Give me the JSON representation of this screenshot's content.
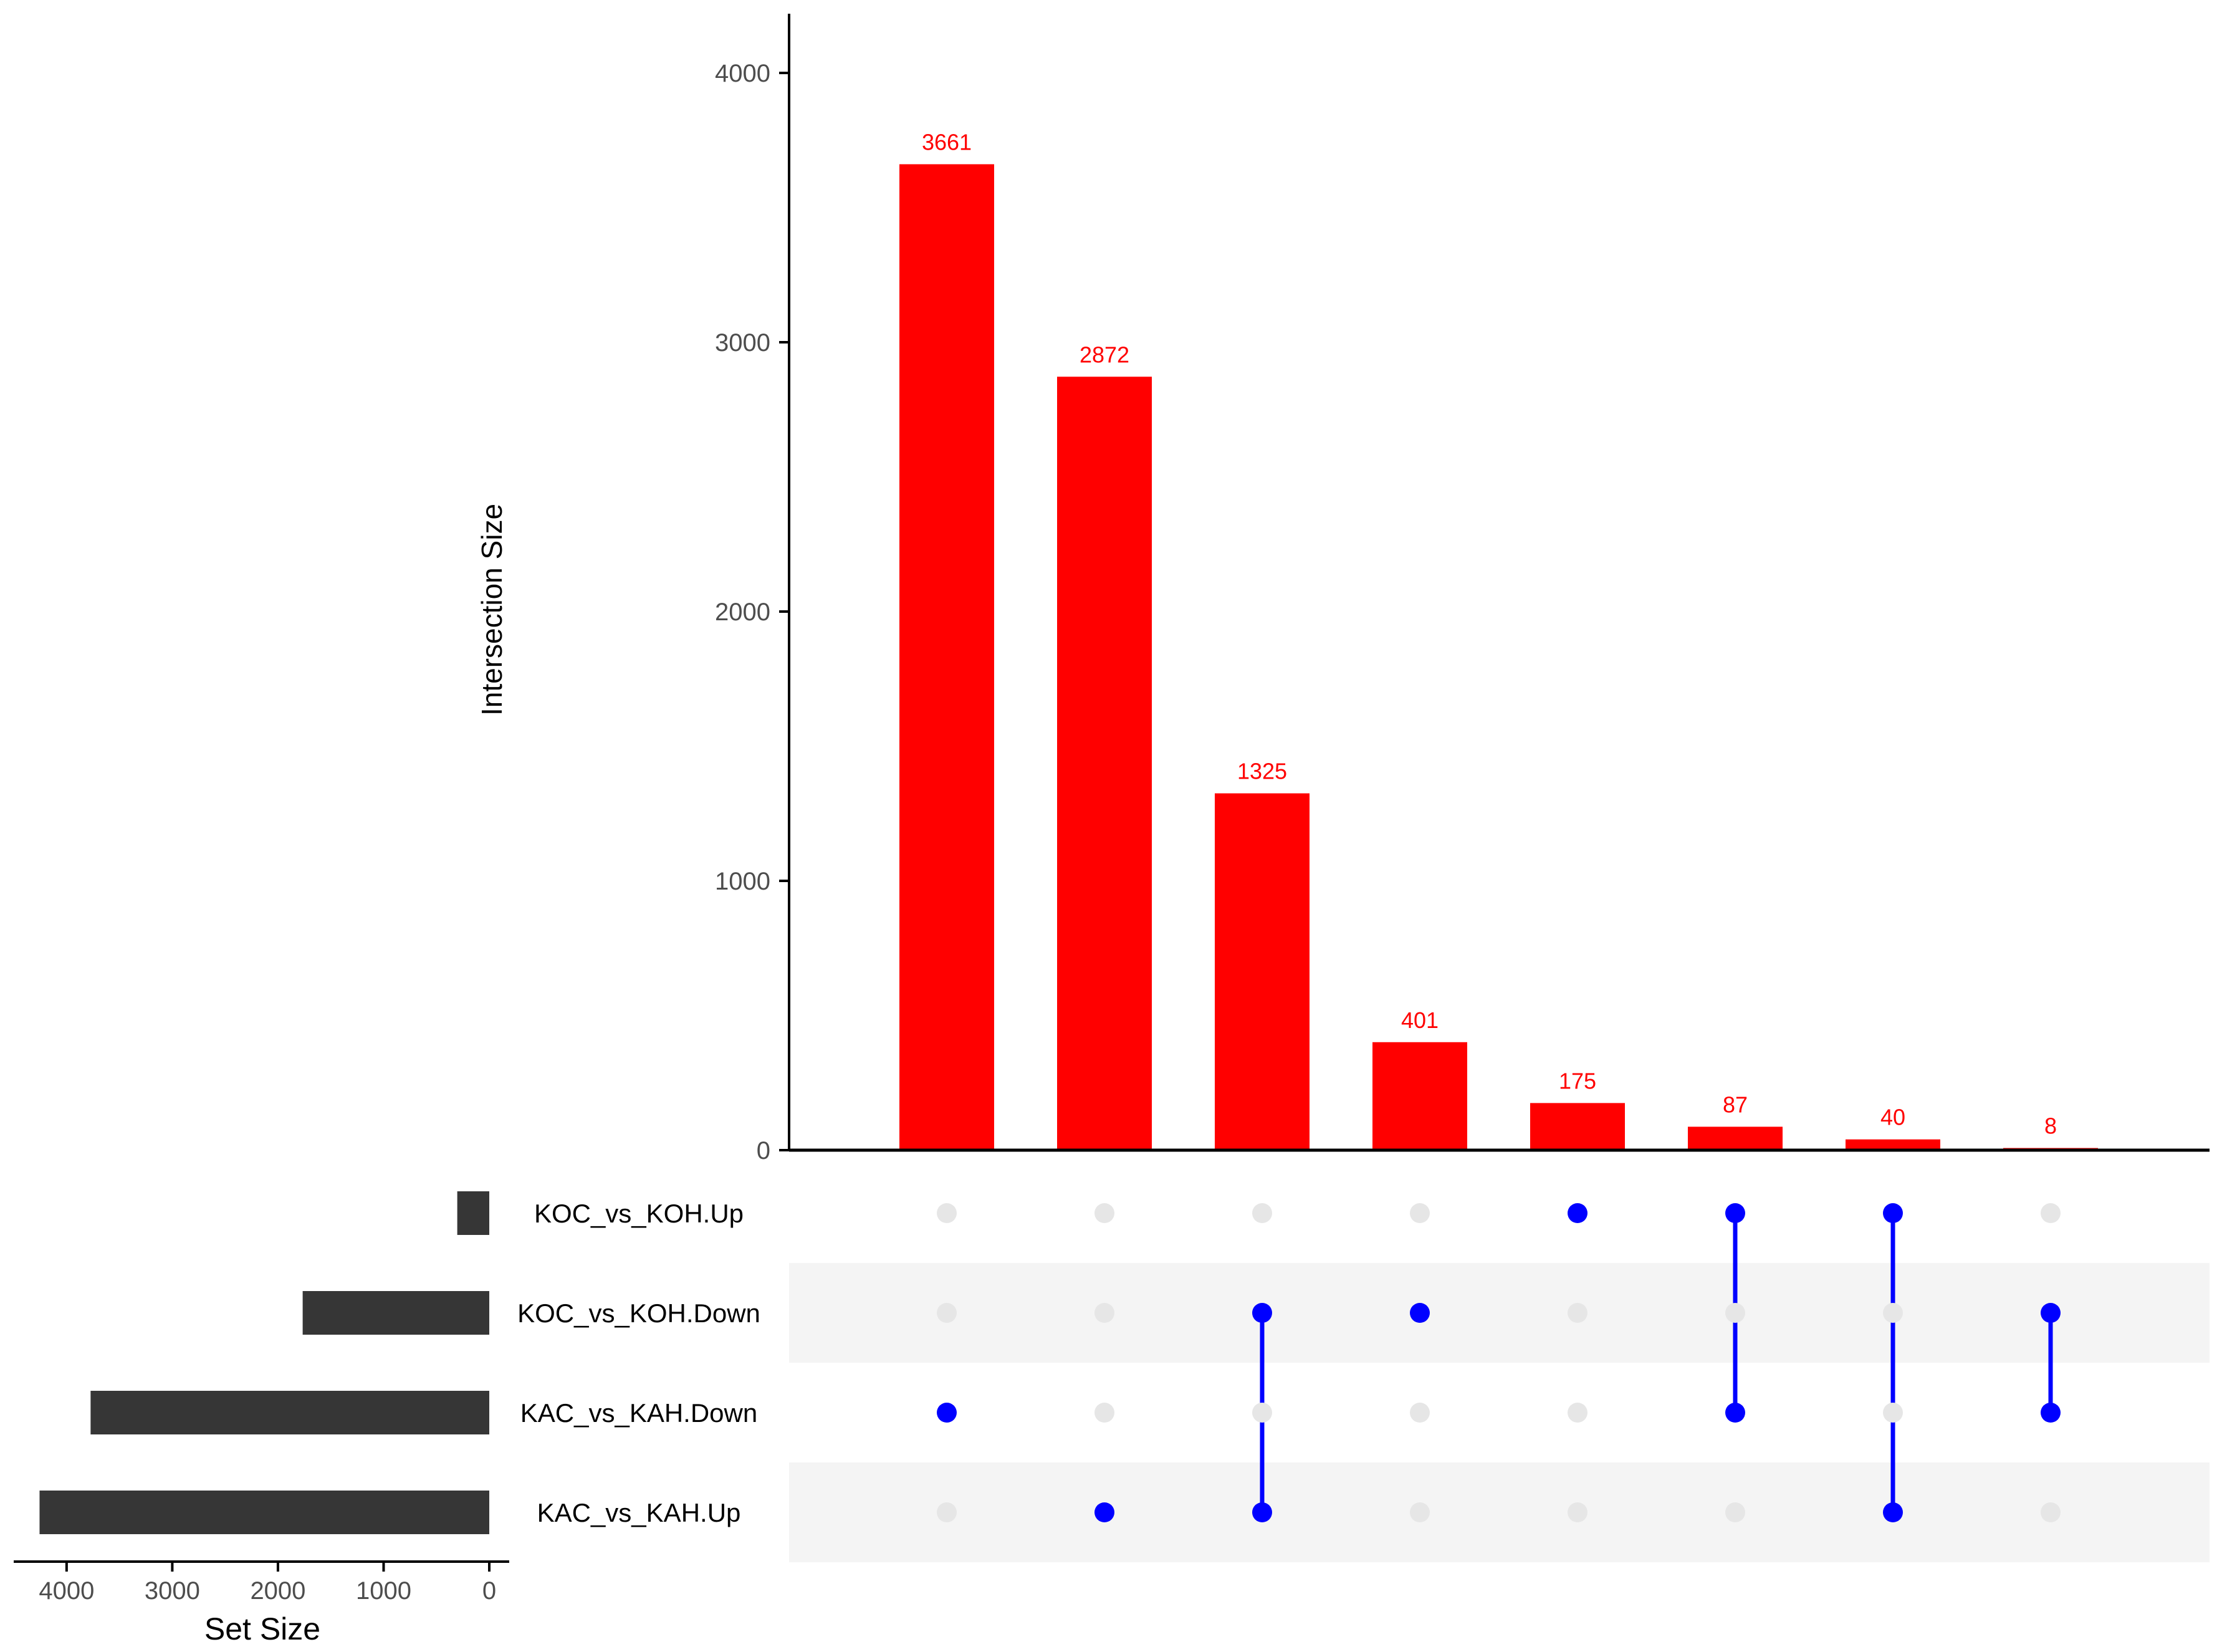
{
  "chart_data": {
    "type": "bar",
    "chart_kind": "upset",
    "sets": [
      "KOC_vs_KOH.Up",
      "KOC_vs_KOH.Down",
      "KAC_vs_KAH.Down",
      "KAC_vs_KAH.Up"
    ],
    "set_sizes": [
      303,
      1766,
      3773,
      4256
    ],
    "intersections": [
      {
        "sets": [
          2
        ],
        "value": 3661,
        "label": "3661"
      },
      {
        "sets": [
          3
        ],
        "value": 2872,
        "label": "2872"
      },
      {
        "sets": [
          1,
          3
        ],
        "value": 1325,
        "label": "1325"
      },
      {
        "sets": [
          1
        ],
        "value": 401,
        "label": "401"
      },
      {
        "sets": [
          0
        ],
        "value": 175,
        "label": "175"
      },
      {
        "sets": [
          0,
          2
        ],
        "value": 87,
        "label": "87"
      },
      {
        "sets": [
          0,
          3
        ],
        "value": 40,
        "label": "40"
      },
      {
        "sets": [
          1,
          2
        ],
        "value": 8,
        "label": "8"
      }
    ],
    "ylabel": "Intersection Size",
    "ylim": [
      0,
      4220
    ],
    "yticks": [
      0,
      1000,
      2000,
      3000,
      4000
    ],
    "xlabel": "Set Size",
    "set_size_xlim": [
      0,
      4450
    ],
    "set_size_ticks": [
      4000,
      3000,
      2000,
      1000,
      0
    ],
    "grid": false,
    "colors": {
      "bar": "#ff0000",
      "bar_label": "#ff0000",
      "dot_active": "#0000ff",
      "dot_inactive": "#e6e6e6",
      "set_bar": "#363636",
      "row_shade": "#f4f4f4",
      "axis": "#000000",
      "tick_text": "#4d4d4d"
    }
  }
}
